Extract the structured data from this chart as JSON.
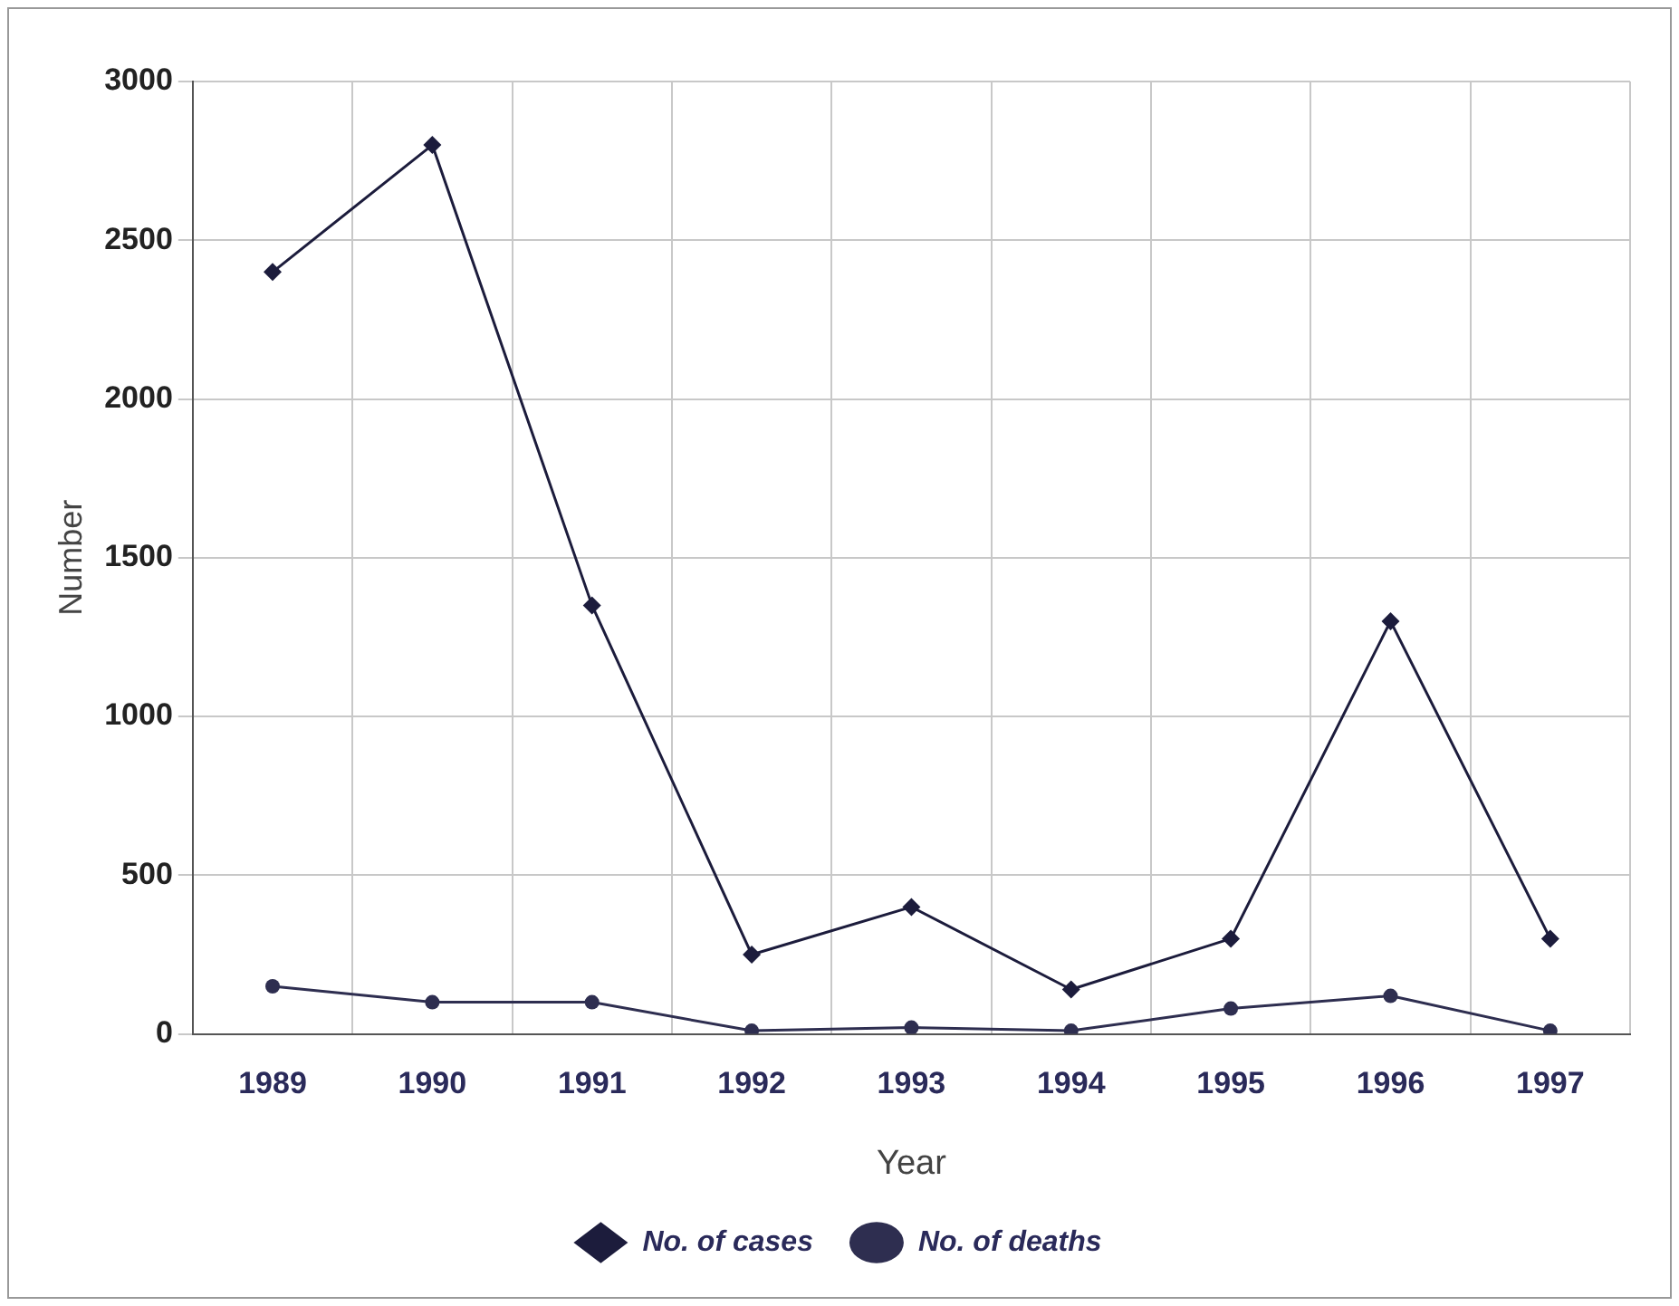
{
  "chart_data": {
    "type": "line",
    "xlabel": "Year",
    "ylabel": "Number",
    "categories": [
      "1989",
      "1990",
      "1991",
      "1992",
      "1993",
      "1994",
      "1995",
      "1996",
      "1997"
    ],
    "series": [
      {
        "name": "No. of cases",
        "color": "#1c1c3c",
        "marker": "diamond",
        "values": [
          2400,
          2800,
          1350,
          250,
          400,
          140,
          300,
          1300,
          300
        ]
      },
      {
        "name": "No. of deaths",
        "color": "#2e2e50",
        "marker": "circle",
        "values": [
          150,
          100,
          100,
          10,
          20,
          10,
          80,
          120,
          10
        ]
      }
    ],
    "ylim": [
      0,
      3000
    ],
    "yticks": [
      0,
      500,
      1000,
      1500,
      2000,
      2500,
      3000
    ],
    "grid": true,
    "legend": "bottom",
    "line_style": "solid"
  }
}
